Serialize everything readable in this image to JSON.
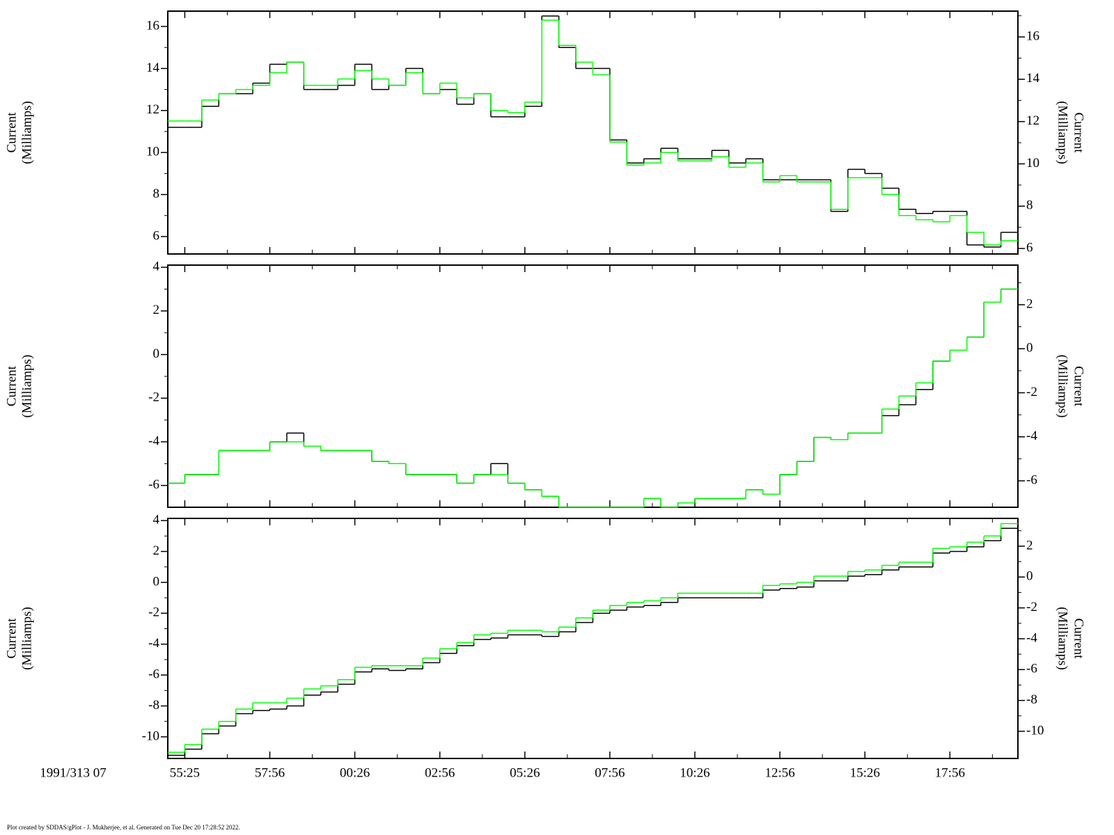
{
  "chart_data": [
    {
      "type": "line",
      "step": true,
      "ylabel": [
        "Current",
        "(Milliamps)"
      ],
      "y2label": [
        "Current",
        "(Milliamps)"
      ],
      "ylim": [
        5.17,
        16.73
      ],
      "yticks": [
        6,
        8,
        10,
        12,
        14,
        16
      ],
      "y2lim": [
        5.74,
        17.22
      ],
      "y2ticks": [
        6,
        8,
        10,
        12,
        14,
        16
      ],
      "series": [
        {
          "color": "#000000",
          "values": [
            11.2,
            11.2,
            12.2,
            12.8,
            12.8,
            13.3,
            14.2,
            14.3,
            13.0,
            13.0,
            13.2,
            14.2,
            13.0,
            13.2,
            14.0,
            12.8,
            13.0,
            12.3,
            12.8,
            11.7,
            11.7,
            12.2,
            16.5,
            15.0,
            14.0,
            14.0,
            10.6,
            9.5,
            9.7,
            10.2,
            9.7,
            9.7,
            10.1,
            9.5,
            9.7,
            8.7,
            8.7,
            8.7,
            8.7,
            7.2,
            9.2,
            9.0,
            8.3,
            7.3,
            7.1,
            7.2,
            7.2,
            5.6,
            5.5,
            6.2
          ]
        },
        {
          "color": "#00ff00",
          "values": [
            11.5,
            11.5,
            12.5,
            12.8,
            13.0,
            13.2,
            13.8,
            14.3,
            13.2,
            13.2,
            13.5,
            13.9,
            13.5,
            13.2,
            13.8,
            12.8,
            13.3,
            12.6,
            12.8,
            12.0,
            11.9,
            12.4,
            16.3,
            15.1,
            14.3,
            13.7,
            10.5,
            9.4,
            9.5,
            10.0,
            9.6,
            9.6,
            9.8,
            9.3,
            9.5,
            8.6,
            8.9,
            8.6,
            8.6,
            7.3,
            8.8,
            8.8,
            8.0,
            7.0,
            6.8,
            6.7,
            7.0,
            6.2,
            5.6,
            5.8
          ]
        }
      ]
    },
    {
      "type": "line",
      "step": true,
      "ylabel": [
        "Current",
        "(Milliamps)"
      ],
      "y2label": [
        "Current",
        "(Milliamps)"
      ],
      "ylim": [
        -7.0,
        4.1
      ],
      "yticks": [
        -6,
        -4,
        -2,
        0,
        2,
        4
      ],
      "y2lim": [
        -7.2,
        3.8
      ],
      "y2ticks": [
        -6,
        -4,
        -2,
        0,
        2
      ],
      "series": [
        {
          "color": "#000000",
          "values": [
            -5.9,
            -5.5,
            -5.5,
            -4.4,
            -4.4,
            -4.4,
            -4.0,
            -3.6,
            -4.2,
            -4.4,
            -4.4,
            -4.4,
            -4.9,
            -5.0,
            -5.5,
            -5.5,
            -5.5,
            -5.9,
            -5.5,
            -5.0,
            -5.9,
            -6.2,
            -6.5,
            -7.0,
            -7.0,
            -7.0,
            -7.0,
            -7.0,
            -6.6,
            -7.0,
            -6.8,
            -6.6,
            -6.6,
            -6.6,
            -6.2,
            -6.4,
            -5.5,
            -4.9,
            -3.8,
            -3.9,
            -3.6,
            -3.6,
            -2.8,
            -2.3,
            -1.6,
            -0.3,
            0.2,
            0.8,
            2.4,
            3.0
          ]
        },
        {
          "color": "#00ff00",
          "values": [
            -5.9,
            -5.5,
            -5.5,
            -4.4,
            -4.4,
            -4.4,
            -4.0,
            -4.0,
            -4.2,
            -4.4,
            -4.4,
            -4.4,
            -4.9,
            -5.0,
            -5.5,
            -5.5,
            -5.5,
            -5.9,
            -5.5,
            -5.5,
            -5.9,
            -6.2,
            -6.5,
            -7.0,
            -7.0,
            -7.0,
            -7.0,
            -7.0,
            -6.6,
            -7.0,
            -6.8,
            -6.6,
            -6.6,
            -6.6,
            -6.2,
            -6.4,
            -5.5,
            -4.9,
            -3.8,
            -3.9,
            -3.6,
            -3.6,
            -2.5,
            -1.9,
            -1.3,
            -0.3,
            0.2,
            0.8,
            2.4,
            3.0
          ]
        }
      ]
    },
    {
      "type": "line",
      "step": true,
      "ylabel": [
        "Current",
        "(Milliamps)"
      ],
      "y2label": [
        "Current",
        "(Milliamps)"
      ],
      "xlabel": "1991/313 07",
      "categories": [
        null,
        "55:25",
        null,
        null,
        null,
        null,
        "57:56",
        null,
        null,
        null,
        null,
        "00:26",
        null,
        null,
        null,
        null,
        "02:56",
        null,
        null,
        null,
        null,
        "05:26",
        null,
        null,
        null,
        null,
        "07:56",
        null,
        null,
        null,
        null,
        "10:26",
        null,
        null,
        null,
        null,
        "12:56",
        null,
        null,
        null,
        null,
        "15:26",
        null,
        null,
        null,
        null,
        "17:56",
        null,
        null,
        null
      ],
      "ylim": [
        -11.4,
        4.14
      ],
      "yticks": [
        -10,
        -8,
        -6,
        -4,
        -2,
        0,
        2,
        4
      ],
      "y2lim": [
        -11.76,
        3.8
      ],
      "y2ticks": [
        -10,
        -8,
        -6,
        -4,
        -2,
        0,
        2
      ],
      "series": [
        {
          "color": "#000000",
          "values": [
            -11.2,
            -10.8,
            -9.8,
            -9.3,
            -8.5,
            -8.3,
            -8.2,
            -8.0,
            -7.3,
            -7.1,
            -6.6,
            -5.8,
            -5.6,
            -5.7,
            -5.6,
            -5.2,
            -4.6,
            -4.1,
            -3.7,
            -3.6,
            -3.4,
            -3.4,
            -3.5,
            -3.2,
            -2.6,
            -2.0,
            -1.8,
            -1.6,
            -1.5,
            -1.3,
            -1.0,
            -1.0,
            -1.0,
            -1.0,
            -1.0,
            -0.5,
            -0.4,
            -0.3,
            0.1,
            0.1,
            0.4,
            0.5,
            0.8,
            1.0,
            1.0,
            1.9,
            2.0,
            2.3,
            2.7,
            3.5
          ]
        },
        {
          "color": "#00ff00",
          "values": [
            -11.0,
            -10.5,
            -9.5,
            -9.0,
            -8.2,
            -7.8,
            -7.8,
            -7.5,
            -6.9,
            -6.7,
            -6.3,
            -5.5,
            -5.4,
            -5.4,
            -5.4,
            -4.9,
            -4.3,
            -3.9,
            -3.4,
            -3.3,
            -3.1,
            -3.1,
            -3.2,
            -2.9,
            -2.3,
            -1.8,
            -1.5,
            -1.3,
            -1.2,
            -1.0,
            -0.7,
            -0.7,
            -0.7,
            -0.7,
            -0.7,
            -0.2,
            -0.1,
            0.0,
            0.4,
            0.4,
            0.7,
            0.8,
            1.1,
            1.3,
            1.3,
            2.2,
            2.3,
            2.6,
            3.0,
            3.8
          ]
        }
      ]
    }
  ],
  "footer": "Plot created by SDDAS/gPlot - J. Mukherjee, et al.  Generated on Tue Dec 20 17:28:52 2022."
}
